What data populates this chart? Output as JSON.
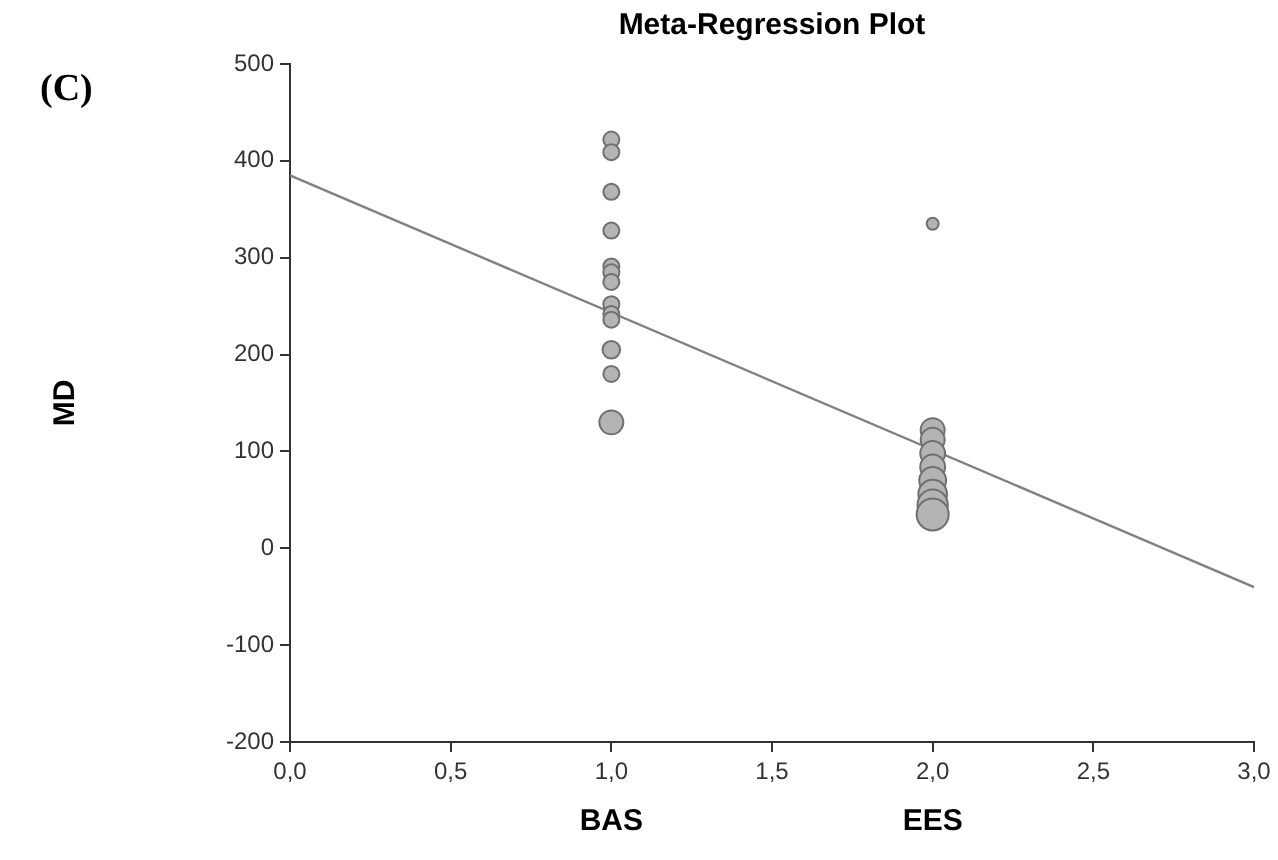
{
  "chart_data": {
    "type": "bubble",
    "title": "Meta-Regression Plot",
    "ylabel": "MD",
    "xlim": [
      0,
      3
    ],
    "xticks": [
      {
        "value": 0,
        "label": "0,0"
      },
      {
        "value": 0.5,
        "label": "0,5"
      },
      {
        "value": 1,
        "label": "1,0"
      },
      {
        "value": 1.5,
        "label": "1,5"
      },
      {
        "value": 2,
        "label": "2,0"
      },
      {
        "value": 2.5,
        "label": "2,5"
      },
      {
        "value": 3,
        "label": "3,0"
      }
    ],
    "ylim": [
      -200,
      500
    ],
    "yticks": [
      -200,
      -100,
      0,
      100,
      200,
      300,
      400,
      500
    ],
    "grid": false,
    "legend": false,
    "series": [
      {
        "color": "#b4b4b4",
        "x": [
          1,
          1,
          1,
          1,
          1,
          1,
          1,
          1,
          1,
          1,
          1,
          1,
          1
        ],
        "values": [
          422,
          409,
          368,
          328,
          291,
          285,
          275,
          252,
          242,
          236,
          205,
          180,
          130
        ],
        "sizes": [
          0.25,
          0.25,
          0.25,
          0.25,
          0.25,
          0.25,
          0.25,
          0.25,
          0.25,
          0.25,
          0.3,
          0.25,
          0.56
        ]
      },
      {
        "color": "#b4b4b4",
        "x": [
          2,
          2,
          2,
          2,
          2,
          2,
          2,
          2,
          2
        ],
        "values": [
          335,
          122,
          112,
          98,
          84,
          70,
          56,
          45,
          35
        ],
        "sizes": [
          0.14,
          0.56,
          0.56,
          0.6,
          0.6,
          0.7,
          0.8,
          0.9,
          1
        ]
      },
      {
        "type": "line",
        "color": "#808080",
        "x": [
          0,
          3
        ],
        "values": [
          385,
          -40
        ]
      }
    ],
    "annotations": [
      "(C)",
      "BAS",
      "EES"
    ]
  }
}
